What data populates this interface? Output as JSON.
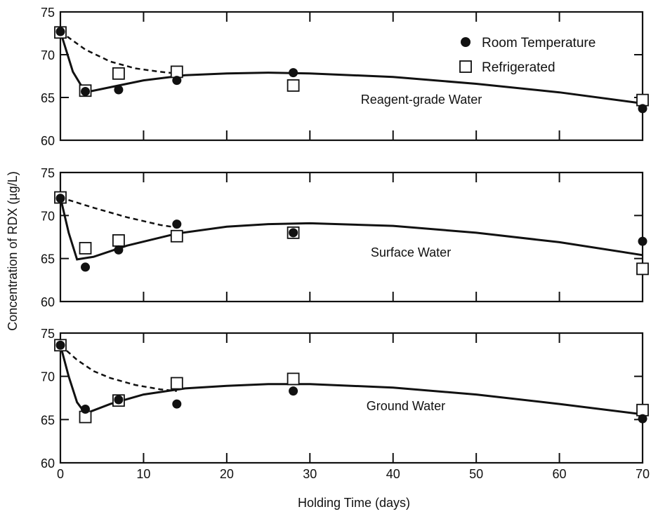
{
  "chart_data": {
    "type": "scatter",
    "xlabel": "Holding Time (days)",
    "ylabel": "Concentration of RDX (µg/L)",
    "xlim": [
      0,
      70
    ],
    "ylim": [
      60,
      75
    ],
    "x_ticks": [
      0,
      10,
      20,
      30,
      40,
      50,
      60,
      70
    ],
    "y_ticks": [
      60,
      65,
      70,
      75
    ],
    "legend": {
      "position": "top-right",
      "entries": [
        {
          "label": "Room Temperature",
          "marker": "filled-circle"
        },
        {
          "label": "Refrigerated",
          "marker": "open-square"
        }
      ]
    },
    "panels": [
      {
        "label": "Reagent-grade Water",
        "series": [
          {
            "name": "Room Temperature",
            "x": [
              0,
              3,
              7,
              14,
              28,
              70
            ],
            "y": [
              72.7,
              65.7,
              65.9,
              67.0,
              67.9,
              63.7
            ]
          },
          {
            "name": "Refrigerated",
            "x": [
              0,
              3,
              7,
              14,
              28,
              70
            ],
            "y": [
              72.6,
              65.8,
              67.8,
              68.0,
              66.4,
              64.7
            ]
          }
        ],
        "curves": {
          "solid": {
            "x": [
              0,
              1.5,
              3,
              6,
              10,
              15,
              20,
              25,
              30,
              40,
              50,
              60,
              70
            ],
            "y": [
              72.7,
              68.0,
              65.6,
              66.2,
              67.0,
              67.6,
              67.8,
              67.9,
              67.8,
              67.4,
              66.6,
              65.6,
              64.3
            ]
          },
          "dashed": {
            "x": [
              0,
              3,
              6,
              9,
              12,
              14
            ],
            "y": [
              72.7,
              70.6,
              69.2,
              68.4,
              68.0,
              67.8
            ]
          }
        }
      },
      {
        "label": "Surface Water",
        "series": [
          {
            "name": "Room Temperature",
            "x": [
              0,
              3,
              7,
              14,
              28,
              70
            ],
            "y": [
              72.0,
              64.0,
              66.0,
              69.0,
              68.0,
              67.0
            ]
          },
          {
            "name": "Refrigerated",
            "x": [
              0,
              3,
              7,
              14,
              28,
              70
            ],
            "y": [
              72.1,
              66.2,
              67.1,
              67.6,
              68.0,
              63.8
            ]
          }
        ],
        "curves": {
          "solid": {
            "x": [
              0,
              1,
              2,
              4,
              8,
              14,
              20,
              25,
              30,
              40,
              50,
              60,
              70
            ],
            "y": [
              72.1,
              68.0,
              64.9,
              65.2,
              66.5,
              67.9,
              68.7,
              69.0,
              69.1,
              68.8,
              68.0,
              66.9,
              65.4
            ]
          },
          "dashed": {
            "x": [
              0,
              4,
              8,
              12,
              14
            ],
            "y": [
              72.1,
              70.9,
              69.8,
              68.9,
              68.6
            ]
          }
        }
      },
      {
        "label": "Ground Water",
        "series": [
          {
            "name": "Room Temperature",
            "x": [
              0,
              3,
              7,
              14,
              28,
              70
            ],
            "y": [
              73.6,
              66.2,
              67.3,
              66.8,
              68.3,
              65.1
            ]
          },
          {
            "name": "Refrigerated",
            "x": [
              0,
              3,
              7,
              14,
              28,
              70
            ],
            "y": [
              73.6,
              65.3,
              67.2,
              69.2,
              69.7,
              66.1
            ]
          }
        ],
        "curves": {
          "solid": {
            "x": [
              0,
              1,
              2,
              3,
              6,
              10,
              15,
              20,
              25,
              30,
              40,
              50,
              60,
              70
            ],
            "y": [
              73.6,
              70.0,
              67.0,
              65.7,
              66.8,
              67.9,
              68.6,
              68.9,
              69.1,
              69.1,
              68.7,
              67.9,
              66.8,
              65.6
            ]
          },
          "dashed": {
            "x": [
              0,
              2,
              4,
              6,
              9,
              12,
              14
            ],
            "y": [
              73.6,
              71.9,
              70.6,
              69.8,
              69.0,
              68.5,
              68.3
            ]
          }
        }
      }
    ]
  }
}
